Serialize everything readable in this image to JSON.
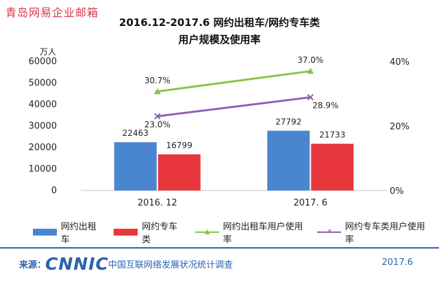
{
  "watermark": "青岛网易企业邮箱",
  "title_line1": "2016.12-2017.6 网约出租车/网约专车类",
  "title_line2": "用户规模及使用率",
  "unit": "万人",
  "colors": {
    "taxi": "#4a86d0",
    "car": "#e8373c",
    "taxi_rate": "#8dc24b",
    "car_rate": "#8b62b3",
    "brand": "#2a63b0"
  },
  "chart_data": {
    "type": "bar",
    "categories": [
      "2016. 12",
      "2017. 6"
    ],
    "series": [
      {
        "name": "网约出租车",
        "kind": "bar",
        "axis": "left",
        "values": [
          22463,
          27792
        ],
        "labels": [
          "22463",
          "27792"
        ]
      },
      {
        "name": "网约专车类",
        "kind": "bar",
        "axis": "left",
        "values": [
          16799,
          21733
        ],
        "labels": [
          "16799",
          "21733"
        ]
      },
      {
        "name": "网约出租车用户使用率",
        "kind": "line",
        "axis": "right",
        "values": [
          30.7,
          37.0
        ],
        "labels": [
          "30.7%",
          "37.0%"
        ],
        "marker": "triangle"
      },
      {
        "name": "网约专车类用户使用率",
        "kind": "line",
        "axis": "right",
        "values": [
          23.0,
          28.9
        ],
        "labels": [
          "23.0%",
          "28.9%"
        ],
        "marker": "cross"
      }
    ],
    "ylim_left": [
      0,
      60000
    ],
    "yticks_left": [
      "0",
      "10000",
      "20000",
      "30000",
      "40000",
      "50000",
      "60000"
    ],
    "ylim_right": [
      0,
      40
    ],
    "yticks_right": [
      "0%",
      "20%",
      "40%"
    ],
    "legend": "bottom",
    "grid": false
  },
  "legend_items": [
    "网约出租车",
    "网约专车类",
    "网约出租车用户使用率",
    "网约专车类用户使用率"
  ],
  "footer": {
    "source_label": "来源：",
    "logo": "CNNIC",
    "org": "中国互联网络发展状况统计调查",
    "date": "2017.6"
  }
}
